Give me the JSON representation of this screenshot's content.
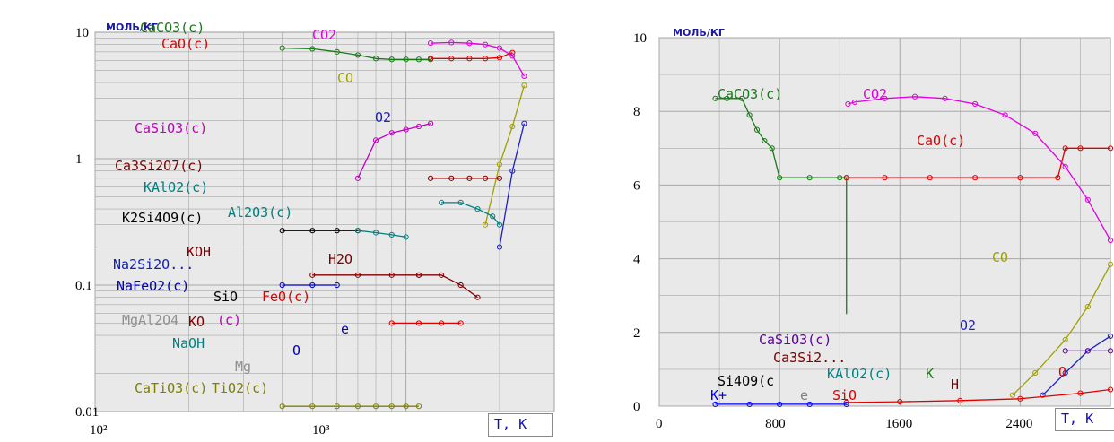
{
  "chart_data": [
    {
      "type": "line",
      "y_scale": "log",
      "x_scale": "log",
      "ylabel": "МОЛЬ/КГ",
      "xlabel": "T, K",
      "y_ticks": [
        "10",
        "1",
        "0.1",
        "0.01"
      ],
      "x_ticks": [
        "10²",
        "10³"
      ],
      "xlim": [
        100,
        3000
      ],
      "ylim": [
        0.01,
        10
      ],
      "grid": true,
      "series": [
        {
          "name": "CaCO3(c)",
          "color": "#1a7a1a",
          "x": [
            400,
            500,
            600,
            700,
            800,
            900,
            1000,
            1100,
            1200
          ],
          "y": [
            7.5,
            7.4,
            7.0,
            6.6,
            6.2,
            6.1,
            6.1,
            6.1,
            6.1
          ]
        },
        {
          "name": "CaO(c)",
          "color": "#e00000",
          "x": [
            1200,
            1400,
            1600,
            1800,
            2000,
            2200
          ],
          "y": [
            6.2,
            6.2,
            6.2,
            6.2,
            6.3,
            6.9
          ]
        },
        {
          "name": "CO2",
          "color": "#e000e0",
          "x": [
            1200,
            1400,
            1600,
            1800,
            2000,
            2200,
            2400
          ],
          "y": [
            8.2,
            8.3,
            8.2,
            8.0,
            7.5,
            6.5,
            4.5
          ]
        },
        {
          "name": "CO",
          "color": "#a0a000",
          "x": [
            1800,
            2000,
            2200,
            2400
          ],
          "y": [
            0.3,
            0.9,
            1.8,
            3.8
          ]
        },
        {
          "name": "O2",
          "color": "#2020c0",
          "x": [
            2000,
            2200,
            2400
          ],
          "y": [
            0.2,
            0.8,
            1.9
          ]
        },
        {
          "name": "CaSiO3(c)",
          "color": "#c000c0",
          "x": [
            700,
            800,
            900,
            1000,
            1100,
            1200
          ],
          "y": [
            0.7,
            1.4,
            1.6,
            1.7,
            1.8,
            1.9
          ]
        },
        {
          "name": "Ca3Si2O7(c)",
          "color": "#800000",
          "x": [
            1200,
            1400,
            1600,
            1800,
            2000
          ],
          "y": [
            0.7,
            0.7,
            0.7,
            0.7,
            0.7
          ]
        },
        {
          "name": "KAlO2(c)",
          "color": "#008080",
          "x": [
            1300,
            1500,
            1700,
            1900,
            2000
          ],
          "y": [
            0.45,
            0.45,
            0.4,
            0.35,
            0.3
          ]
        },
        {
          "name": "K2Si4O9(c)",
          "color": "#000000",
          "x": [
            400,
            500,
            600,
            700
          ],
          "y": [
            0.27,
            0.27,
            0.27,
            0.27
          ]
        },
        {
          "name": "Al2O3(c)",
          "color": "#008080",
          "x": [
            700,
            800,
            900,
            1000
          ],
          "y": [
            0.27,
            0.26,
            0.25,
            0.24
          ]
        },
        {
          "name": "KOH",
          "color": "#800000",
          "x": [
            500,
            700,
            900,
            1100
          ],
          "y": [
            0.12,
            0.12,
            0.12,
            0.12
          ]
        },
        {
          "name": "H2O",
          "color": "#800000",
          "x": [
            1100,
            1300,
            1500,
            1700
          ],
          "y": [
            0.12,
            0.12,
            0.1,
            0.08
          ]
        },
        {
          "name": "NaFeO2(c)",
          "color": "#0000c0",
          "x": [
            400,
            500,
            600
          ],
          "y": [
            0.1,
            0.1,
            0.1
          ]
        },
        {
          "name": "FeO(c)",
          "color": "#e00000",
          "x": [
            900,
            1100,
            1300,
            1500
          ],
          "y": [
            0.05,
            0.05,
            0.05,
            0.05
          ]
        },
        {
          "name": "CaTiO3(c)",
          "color": "#808000",
          "x": [
            400,
            500,
            600,
            700,
            800,
            900,
            1000,
            1100
          ],
          "y": [
            0.011,
            0.011,
            0.011,
            0.011,
            0.011,
            0.011,
            0.011,
            0.011
          ]
        }
      ],
      "labels": [
        {
          "text": "CaCO3(c)",
          "color": "#1a7a1a"
        },
        {
          "text": "CaO(c)",
          "color": "#e00000"
        },
        {
          "text": "CO2",
          "color": "#e000e0"
        },
        {
          "text": "CO",
          "color": "#a0a000"
        },
        {
          "text": "O2",
          "color": "#2020c0"
        },
        {
          "text": "CaSiO3(c)",
          "color": "#c000c0"
        },
        {
          "text": "Ca3Si2O7(c)",
          "color": "#800000"
        },
        {
          "text": "KAlO2(c)",
          "color": "#008080"
        },
        {
          "text": "K2Si4O9(c)",
          "color": "#000000"
        },
        {
          "text": "Al2O3(c)",
          "color": "#008080"
        },
        {
          "text": "KOH",
          "color": "#800000"
        },
        {
          "text": "Na2Si2O...",
          "color": "#1020c0"
        },
        {
          "text": "H2O",
          "color": "#800000"
        },
        {
          "text": "NaFeO2(c)",
          "color": "#0000c0"
        },
        {
          "text": "SiO",
          "color": "#000000"
        },
        {
          "text": "FeO(c)",
          "color": "#e00000"
        },
        {
          "text": "e",
          "color": "#0000c0"
        },
        {
          "text": "MgAl2O4",
          "color": "#909090"
        },
        {
          "text": "KO",
          "color": "#800000"
        },
        {
          "text": "(c)",
          "color": "#c000c0"
        },
        {
          "text": "NaOH",
          "color": "#008080"
        },
        {
          "text": "Mg",
          "color": "#909090"
        },
        {
          "text": "O",
          "color": "#0000c0"
        },
        {
          "text": "CaTiO3(c)",
          "color": "#808000"
        },
        {
          "text": "TiO2(c)",
          "color": "#808000"
        }
      ]
    },
    {
      "type": "line",
      "y_scale": "linear",
      "ylabel": "МОЛЬ/КГ",
      "xlabel": "T, K",
      "y_ticks": [
        "10",
        "8",
        "6",
        "4",
        "2",
        "0"
      ],
      "x_ticks": [
        "0",
        "800",
        "1600",
        "2400"
      ],
      "xlim": [
        0,
        3000
      ],
      "ylim": [
        0,
        10
      ],
      "grid": true,
      "series": [
        {
          "name": "CaCO3(c)",
          "color": "#1a7a1a",
          "x": [
            373,
            450,
            550,
            600,
            650,
            700,
            750,
            800,
            1000,
            1200,
            1245
          ],
          "y": [
            8.35,
            8.35,
            8.35,
            7.9,
            7.5,
            7.2,
            7.0,
            6.2,
            6.2,
            6.2,
            6.2
          ]
        },
        {
          "name": "CaO(c)",
          "color": "#e00000",
          "x": [
            1245,
            1500,
            1800,
            2100,
            2400,
            2650,
            2700,
            2800,
            3000
          ],
          "y": [
            6.2,
            6.2,
            6.2,
            6.2,
            6.2,
            6.2,
            7.0,
            7.0,
            7.0
          ]
        },
        {
          "name": "CO2",
          "color": "#e000e0",
          "x": [
            1255,
            1300,
            1500,
            1700,
            1900,
            2100,
            2300,
            2500,
            2700,
            2850,
            3000
          ],
          "y": [
            8.2,
            8.25,
            8.35,
            8.4,
            8.35,
            8.2,
            7.9,
            7.4,
            6.5,
            5.6,
            4.5
          ]
        },
        {
          "name": "CO",
          "color": "#a0a000",
          "x": [
            2350,
            2500,
            2700,
            2850,
            3000
          ],
          "y": [
            0.3,
            0.9,
            1.8,
            2.7,
            3.85
          ]
        },
        {
          "name": "O2",
          "color": "#2020c0",
          "x": [
            2550,
            2700,
            2850,
            3000
          ],
          "y": [
            0.3,
            0.9,
            1.5,
            1.9
          ]
        },
        {
          "name": "CaSiO3(c)",
          "color": "#6000a0",
          "x": [
            2700,
            2850,
            3000
          ],
          "y": [
            1.5,
            1.5,
            1.5
          ]
        },
        {
          "name": "SiO",
          "color": "#e00000",
          "x": [
            1245,
            1600,
            2000,
            2400,
            2800,
            3000
          ],
          "y": [
            0.1,
            0.12,
            0.15,
            0.2,
            0.35,
            0.45
          ]
        },
        {
          "name": "K+",
          "color": "#0000ff",
          "x": [
            373,
            600,
            800,
            1000,
            1245
          ],
          "y": [
            0.05,
            0.05,
            0.05,
            0.05,
            0.05
          ]
        }
      ],
      "labels": [
        {
          "text": "CaCO3(c)",
          "color": "#1a7a1a"
        },
        {
          "text": "CO2",
          "color": "#e000e0"
        },
        {
          "text": "CaO(c)",
          "color": "#e00000"
        },
        {
          "text": "CO",
          "color": "#a0a000"
        },
        {
          "text": "O2",
          "color": "#2020c0"
        },
        {
          "text": "CaSiO3(c)",
          "color": "#6000a0"
        },
        {
          "text": "Ca3Si2...",
          "color": "#800000"
        },
        {
          "text": "KAlO2(c)",
          "color": "#008080"
        },
        {
          "text": "K",
          "color": "#1a7a1a"
        },
        {
          "text": "Si4O9(c",
          "color": "#000000"
        },
        {
          "text": "K+",
          "color": "#0000ff"
        },
        {
          "text": "e",
          "color": "#808080"
        },
        {
          "text": "SiO",
          "color": "#e00000"
        },
        {
          "text": "H",
          "color": "#800000"
        },
        {
          "text": "O",
          "color": "#e00000"
        }
      ]
    }
  ]
}
